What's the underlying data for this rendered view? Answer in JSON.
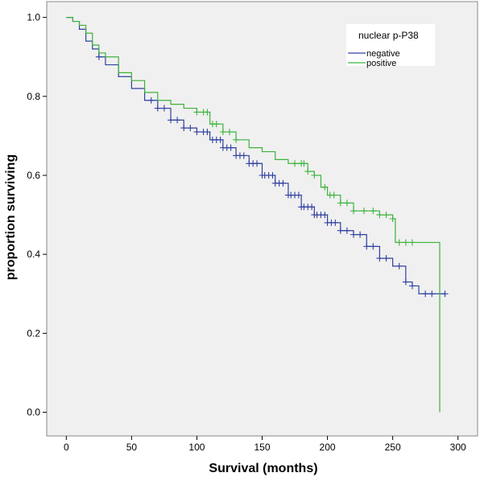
{
  "chart_data": {
    "type": "line",
    "title": "",
    "xlabel": "Survival (months)",
    "ylabel": "proportion surviving",
    "xlim": [
      -15,
      315
    ],
    "ylim": [
      -0.06,
      1.04
    ],
    "xticks": [
      0,
      50,
      100,
      150,
      200,
      250,
      300
    ],
    "yticks": [
      0.0,
      0.2,
      0.4,
      0.6,
      0.8,
      1.0
    ],
    "ytick_labels": [
      "0.0",
      "0.2",
      "0.4",
      "0.6",
      "0.8",
      "1.0"
    ],
    "grid": false,
    "background": "#f0f0f0",
    "step": true,
    "legend": {
      "title": "nuclear p-P38",
      "position": "top-right",
      "entries": [
        "negative",
        "positive"
      ]
    },
    "series": [
      {
        "name": "negative",
        "color": "#3040a0",
        "x": [
          0,
          5,
          10,
          15,
          20,
          25,
          30,
          40,
          50,
          60,
          70,
          80,
          90,
          100,
          110,
          120,
          130,
          140,
          150,
          160,
          170,
          180,
          190,
          200,
          210,
          220,
          230,
          240,
          250,
          260,
          265,
          270,
          280,
          290
        ],
        "y": [
          1.0,
          0.99,
          0.97,
          0.94,
          0.92,
          0.9,
          0.88,
          0.85,
          0.82,
          0.79,
          0.77,
          0.74,
          0.72,
          0.71,
          0.69,
          0.67,
          0.65,
          0.63,
          0.6,
          0.58,
          0.55,
          0.52,
          0.5,
          0.48,
          0.46,
          0.45,
          0.42,
          0.39,
          0.37,
          0.33,
          0.32,
          0.3,
          0.3,
          0.3
        ],
        "censor_x": [
          25,
          65,
          70,
          75,
          80,
          85,
          90,
          95,
          100,
          105,
          108,
          112,
          115,
          118,
          120,
          123,
          126,
          130,
          133,
          136,
          140,
          143,
          146,
          150,
          152,
          155,
          158,
          160,
          163,
          166,
          170,
          172,
          175,
          178,
          180,
          182,
          185,
          188,
          190,
          192,
          195,
          198,
          200,
          203,
          206,
          210,
          215,
          220,
          225,
          230,
          235,
          240,
          245,
          255,
          260,
          265,
          275,
          280,
          290
        ]
      },
      {
        "name": "positive",
        "color": "#3cb33c",
        "x": [
          0,
          5,
          10,
          15,
          20,
          25,
          30,
          40,
          50,
          60,
          70,
          80,
          90,
          100,
          110,
          120,
          130,
          140,
          150,
          160,
          170,
          180,
          185,
          190,
          195,
          200,
          210,
          220,
          230,
          240,
          250,
          252,
          260,
          270,
          280,
          286,
          286
        ],
        "y": [
          1.0,
          0.99,
          0.98,
          0.96,
          0.93,
          0.91,
          0.9,
          0.86,
          0.84,
          0.81,
          0.79,
          0.78,
          0.77,
          0.76,
          0.73,
          0.71,
          0.69,
          0.67,
          0.66,
          0.64,
          0.63,
          0.63,
          0.61,
          0.6,
          0.57,
          0.55,
          0.53,
          0.51,
          0.51,
          0.5,
          0.49,
          0.43,
          0.43,
          0.43,
          0.43,
          0.43,
          0.0
        ],
        "censor_x": [
          100,
          105,
          108,
          112,
          115,
          120,
          125,
          130,
          175,
          180,
          182,
          185,
          190,
          198,
          202,
          205,
          210,
          215,
          220,
          228,
          235,
          240,
          245,
          250,
          255,
          260,
          265
        ]
      }
    ]
  }
}
